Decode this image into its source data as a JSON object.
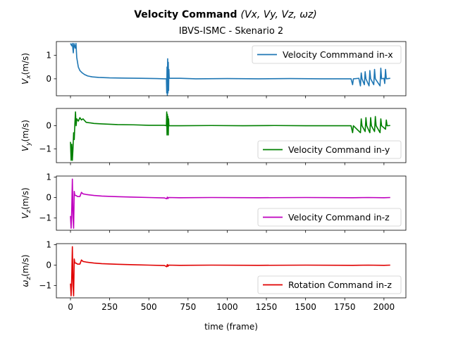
{
  "chart_data": {
    "type": "line",
    "title": "Velocity Command",
    "title_math": "(Vx, Vy, Vz, ωz)",
    "subtitle": "IBVS-ISMC - Skenario 2",
    "xlabel": "time (frame)",
    "xlim": [
      -90,
      2140
    ],
    "xticks": [
      0,
      250,
      500,
      750,
      1000,
      1250,
      1500,
      1750,
      2000
    ],
    "subplots": [
      {
        "ylabel": "Vx(m/s)",
        "legend": "Velocity Commmand in-x",
        "legend_loc": "upper right",
        "color": "#1f77b4",
        "ylim": [
          -0.72,
          1.58
        ],
        "yticks": [
          0,
          1
        ],
        "points": [
          [
            0,
            1.5
          ],
          [
            8,
            1.4
          ],
          [
            12,
            1.5
          ],
          [
            18,
            1.1
          ],
          [
            22,
            1.5
          ],
          [
            30,
            1.3
          ],
          [
            35,
            1.5
          ],
          [
            40,
            0.9
          ],
          [
            50,
            0.5
          ],
          [
            60,
            0.35
          ],
          [
            75,
            0.25
          ],
          [
            90,
            0.18
          ],
          [
            110,
            0.12
          ],
          [
            140,
            0.08
          ],
          [
            180,
            0.06
          ],
          [
            250,
            0.04
          ],
          [
            350,
            0.03
          ],
          [
            450,
            0.02
          ],
          [
            550,
            0.01
          ],
          [
            600,
            0.0
          ],
          [
            612,
            0.0
          ],
          [
            614,
            -0.6
          ],
          [
            616,
            0.5
          ],
          [
            618,
            -0.7
          ],
          [
            620,
            0.85
          ],
          [
            622,
            -0.6
          ],
          [
            624,
            0.7
          ],
          [
            626,
            -0.5
          ],
          [
            628,
            0.4
          ],
          [
            630,
            0.02
          ],
          [
            700,
            0.02
          ],
          [
            800,
            0.0
          ],
          [
            1000,
            0.01
          ],
          [
            1200,
            0.0
          ],
          [
            1400,
            0.01
          ],
          [
            1600,
            0.0
          ],
          [
            1790,
            0.0
          ],
          [
            1800,
            -0.25
          ],
          [
            1805,
            0.0
          ],
          [
            1840,
            0.02
          ],
          [
            1850,
            -0.3
          ],
          [
            1855,
            0.25
          ],
          [
            1860,
            0.0
          ],
          [
            1875,
            -0.25
          ],
          [
            1880,
            0.3
          ],
          [
            1885,
            0.0
          ],
          [
            1905,
            -0.3
          ],
          [
            1910,
            0.35
          ],
          [
            1915,
            0.0
          ],
          [
            1935,
            -0.25
          ],
          [
            1940,
            0.4
          ],
          [
            1945,
            0.0
          ],
          [
            1975,
            -0.3
          ],
          [
            1980,
            0.45
          ],
          [
            1985,
            0.0
          ],
          [
            2000,
            0.02
          ],
          [
            2005,
            -0.2
          ],
          [
            2010,
            0.4
          ],
          [
            2015,
            0.0
          ],
          [
            2040,
            0.02
          ]
        ]
      },
      {
        "ylabel": "Vy(m/s)",
        "legend": "Velocity Command in-y",
        "legend_loc": "lower right",
        "color": "#008000",
        "ylim": [
          -1.6,
          0.75
        ],
        "yticks": [
          -1,
          0
        ],
        "points": [
          [
            0,
            -0.7
          ],
          [
            4,
            -1.5
          ],
          [
            8,
            -0.8
          ],
          [
            12,
            -1.5
          ],
          [
            16,
            -1.0
          ],
          [
            20,
            -0.3
          ],
          [
            24,
            -0.6
          ],
          [
            28,
            0.1
          ],
          [
            32,
            0.6
          ],
          [
            36,
            0.0
          ],
          [
            40,
            0.3
          ],
          [
            50,
            0.2
          ],
          [
            60,
            0.35
          ],
          [
            70,
            0.25
          ],
          [
            80,
            0.3
          ],
          [
            100,
            0.15
          ],
          [
            150,
            0.1
          ],
          [
            200,
            0.08
          ],
          [
            300,
            0.05
          ],
          [
            400,
            0.04
          ],
          [
            500,
            0.02
          ],
          [
            600,
            0.02
          ],
          [
            612,
            0.0
          ],
          [
            614,
            0.6
          ],
          [
            616,
            -0.4
          ],
          [
            618,
            0.5
          ],
          [
            620,
            -0.3
          ],
          [
            622,
            0.4
          ],
          [
            624,
            -0.4
          ],
          [
            626,
            0.3
          ],
          [
            628,
            0.0
          ],
          [
            700,
            0.0
          ],
          [
            900,
            0.01
          ],
          [
            1100,
            0.0
          ],
          [
            1300,
            0.01
          ],
          [
            1500,
            0.0
          ],
          [
            1790,
            0.0
          ],
          [
            1800,
            -0.3
          ],
          [
            1805,
            0.0
          ],
          [
            1850,
            -0.3
          ],
          [
            1855,
            0.3
          ],
          [
            1860,
            0.0
          ],
          [
            1880,
            -0.25
          ],
          [
            1885,
            0.35
          ],
          [
            1890,
            0.0
          ],
          [
            1910,
            -0.3
          ],
          [
            1915,
            0.35
          ],
          [
            1920,
            0.0
          ],
          [
            1940,
            -0.25
          ],
          [
            1945,
            0.4
          ],
          [
            1950,
            0.0
          ],
          [
            1975,
            -0.3
          ],
          [
            1980,
            0.3
          ],
          [
            1985,
            0.0
          ],
          [
            2010,
            -0.15
          ],
          [
            2015,
            0.25
          ],
          [
            2020,
            0.0
          ],
          [
            2040,
            0.01
          ]
        ]
      },
      {
        "ylabel": "Vz(m/s)",
        "legend": "Velocity Command in-z",
        "legend_loc": "lower right",
        "color": "#bf00bf",
        "ylim": [
          -1.6,
          1.05
        ],
        "yticks": [
          -1,
          0,
          1
        ],
        "points": [
          [
            0,
            -0.9
          ],
          [
            4,
            -1.5
          ],
          [
            8,
            -0.6
          ],
          [
            12,
            0.9
          ],
          [
            16,
            -1.0
          ],
          [
            20,
            -1.5
          ],
          [
            24,
            0.3
          ],
          [
            28,
            0.1
          ],
          [
            35,
            0.1
          ],
          [
            45,
            0.05
          ],
          [
            60,
            0.05
          ],
          [
            70,
            0.25
          ],
          [
            80,
            0.18
          ],
          [
            100,
            0.15
          ],
          [
            150,
            0.1
          ],
          [
            200,
            0.07
          ],
          [
            300,
            0.04
          ],
          [
            400,
            0.02
          ],
          [
            500,
            0.0
          ],
          [
            600,
            -0.02
          ],
          [
            614,
            -0.06
          ],
          [
            618,
            0.02
          ],
          [
            622,
            -0.05
          ],
          [
            626,
            0.0
          ],
          [
            700,
            -0.01
          ],
          [
            900,
            0.0
          ],
          [
            1200,
            -0.01
          ],
          [
            1500,
            0.0
          ],
          [
            1800,
            -0.01
          ],
          [
            1900,
            0.0
          ],
          [
            2000,
            -0.01
          ],
          [
            2040,
            0.0
          ]
        ]
      },
      {
        "ylabel": "ωz(m/s)",
        "legend": "Rotation Command in-z",
        "legend_loc": "lower right",
        "color": "#e00000",
        "ylim": [
          -1.6,
          1.05
        ],
        "yticks": [
          -1,
          0,
          1
        ],
        "points": [
          [
            0,
            -0.9
          ],
          [
            4,
            -1.5
          ],
          [
            8,
            -0.6
          ],
          [
            12,
            0.9
          ],
          [
            16,
            -1.0
          ],
          [
            20,
            -1.5
          ],
          [
            24,
            0.3
          ],
          [
            28,
            0.1
          ],
          [
            35,
            0.1
          ],
          [
            45,
            0.05
          ],
          [
            60,
            0.05
          ],
          [
            70,
            0.25
          ],
          [
            80,
            0.18
          ],
          [
            100,
            0.15
          ],
          [
            150,
            0.1
          ],
          [
            200,
            0.07
          ],
          [
            300,
            0.04
          ],
          [
            400,
            0.02
          ],
          [
            500,
            0.0
          ],
          [
            600,
            -0.02
          ],
          [
            614,
            -0.08
          ],
          [
            618,
            0.03
          ],
          [
            622,
            -0.06
          ],
          [
            626,
            0.0
          ],
          [
            700,
            -0.01
          ],
          [
            900,
            0.0
          ],
          [
            1200,
            -0.01
          ],
          [
            1500,
            0.0
          ],
          [
            1800,
            -0.01
          ],
          [
            1900,
            0.0
          ],
          [
            2000,
            -0.01
          ],
          [
            2040,
            0.0
          ]
        ]
      }
    ]
  }
}
